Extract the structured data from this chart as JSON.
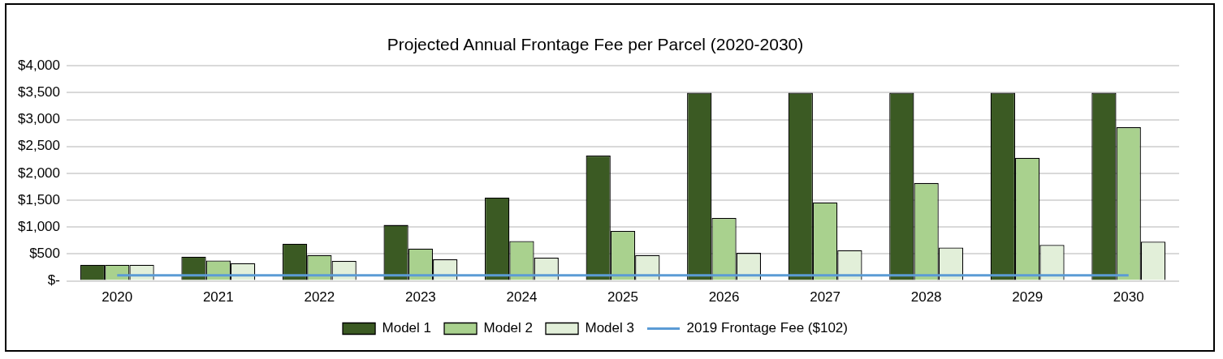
{
  "chart_data": {
    "type": "bar",
    "title": "Projected Annual Frontage Fee per Parcel (2020-2030)",
    "categories": [
      "2020",
      "2021",
      "2022",
      "2023",
      "2024",
      "2025",
      "2026",
      "2027",
      "2028",
      "2029",
      "2030"
    ],
    "series": [
      {
        "name": "Model 1",
        "color": "#3b5a23",
        "values": [
          300,
          450,
          690,
          1040,
          1550,
          2330,
          3500,
          3500,
          3500,
          3500,
          3500
        ]
      },
      {
        "name": "Model 2",
        "color": "#a9d18e",
        "values": [
          300,
          380,
          480,
          600,
          740,
          930,
          1170,
          1460,
          1820,
          2290,
          2860
        ]
      },
      {
        "name": "Model 3",
        "color": "#e2efd9",
        "values": [
          300,
          330,
          370,
          400,
          430,
          480,
          520,
          570,
          620,
          670,
          730
        ]
      },
      {
        "name": "2019 Frontage Fee ($102)",
        "type": "line",
        "color": "#5b9bd5",
        "values": [
          102,
          102,
          102,
          102,
          102,
          102,
          102,
          102,
          102,
          102,
          102
        ],
        "marker": "none"
      }
    ],
    "ylim": [
      0,
      4000
    ],
    "yticks": [
      {
        "value": 0,
        "label": "$-"
      },
      {
        "value": 500,
        "label": "$500"
      },
      {
        "value": 1000,
        "label": "$1,000"
      },
      {
        "value": 1500,
        "label": "$1,500"
      },
      {
        "value": 2000,
        "label": "$2,000"
      },
      {
        "value": 2500,
        "label": "$2,500"
      },
      {
        "value": 3000,
        "label": "$3,000"
      },
      {
        "value": 3500,
        "label": "$3,500"
      },
      {
        "value": 4000,
        "label": "$4,000"
      }
    ],
    "grid": "y",
    "legend": "bottom"
  }
}
